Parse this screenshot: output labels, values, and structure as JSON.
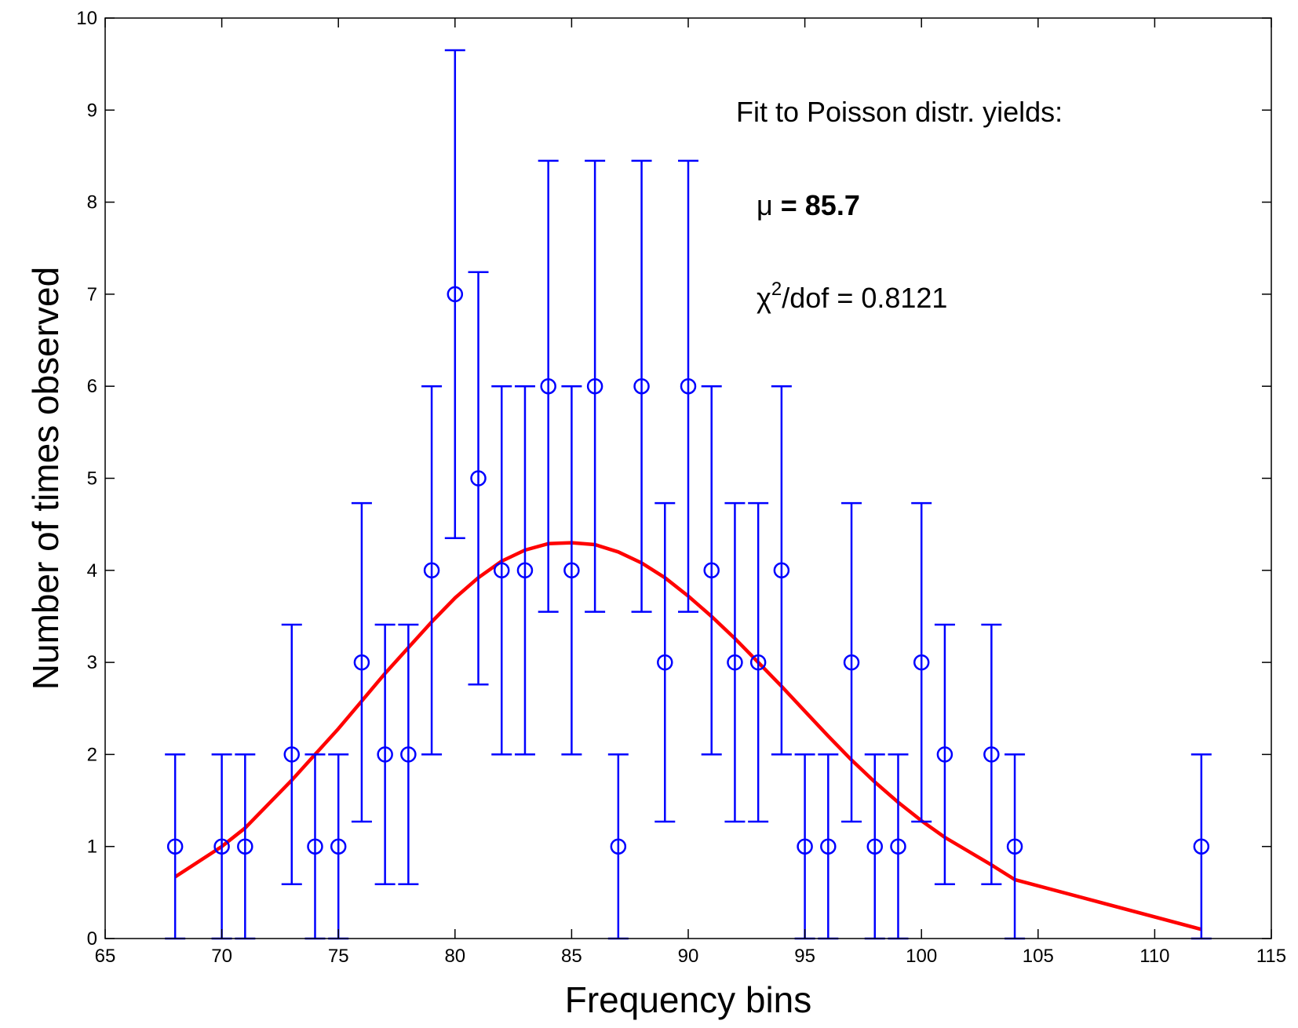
{
  "chart_data": {
    "type": "scatter",
    "title": "",
    "xlabel": "Frequency bins",
    "ylabel": "Number of times observed",
    "xlim": [
      65,
      115
    ],
    "ylim": [
      0,
      10
    ],
    "xticks": [
      "65",
      "70",
      "75",
      "80",
      "85",
      "90",
      "95",
      "100",
      "105",
      "110",
      "115"
    ],
    "yticks": [
      "0",
      "1",
      "2",
      "3",
      "4",
      "5",
      "6",
      "7",
      "8",
      "9",
      "10"
    ],
    "grid": false,
    "colors": {
      "data": "#0000ff",
      "fit": "#ff0000",
      "axes": "#000000"
    },
    "series": [
      {
        "kind": "errorbar",
        "marker": "circle",
        "x": [
          68,
          70,
          71,
          73,
          74,
          75,
          76,
          77,
          78,
          79,
          80,
          81,
          82,
          83,
          84,
          85,
          86,
          87,
          88,
          89,
          90,
          91,
          92,
          93,
          94,
          95,
          96,
          97,
          98,
          99,
          100,
          101,
          103,
          104,
          112
        ],
        "y": [
          1,
          1,
          1,
          2,
          1,
          1,
          3,
          2,
          2,
          4,
          7,
          5,
          4,
          4,
          6,
          4,
          6,
          1,
          6,
          3,
          6,
          4,
          3,
          3,
          4,
          1,
          1,
          3,
          1,
          1,
          3,
          2,
          2,
          1,
          1
        ],
        "err_low": [
          1,
          1,
          1,
          1.41,
          1,
          1,
          1.73,
          1.41,
          1.41,
          2,
          2.65,
          2.24,
          2,
          2,
          2.45,
          2,
          2.45,
          1,
          2.45,
          1.73,
          2.45,
          2,
          1.73,
          1.73,
          2,
          1,
          1,
          1.73,
          1,
          1,
          1.73,
          1.41,
          1.41,
          1,
          1
        ],
        "err_high": [
          1,
          1,
          1,
          1.41,
          1,
          1,
          1.73,
          1.41,
          1.41,
          2,
          2.65,
          2.24,
          2,
          2,
          2.45,
          2,
          2.45,
          1,
          2.45,
          1.73,
          2.45,
          2,
          1.73,
          1.73,
          2,
          1,
          1,
          1.73,
          1,
          1,
          1.73,
          1.41,
          1.41,
          1,
          1
        ]
      },
      {
        "kind": "line",
        "x": [
          68,
          70,
          71,
          73,
          74,
          75,
          76,
          77,
          78,
          79,
          80,
          81,
          82,
          83,
          84,
          85,
          86,
          87,
          88,
          89,
          90,
          91,
          92,
          93,
          94,
          95,
          96,
          97,
          98,
          99,
          100,
          101,
          103,
          104,
          112
        ],
        "y": [
          0.67,
          1.0,
          1.2,
          1.72,
          2.0,
          2.28,
          2.58,
          2.88,
          3.16,
          3.44,
          3.7,
          3.92,
          4.1,
          4.22,
          4.29,
          4.3,
          4.28,
          4.2,
          4.08,
          3.92,
          3.72,
          3.5,
          3.26,
          3.0,
          2.74,
          2.47,
          2.2,
          1.94,
          1.7,
          1.48,
          1.28,
          1.1,
          0.8,
          0.64,
          0.1
        ]
      }
    ],
    "annotations": {
      "line1": "Fit to Poisson distr. yields:",
      "mu_symbol": "μ",
      "mu_text": " = 85.7",
      "chi_symbol": "χ",
      "chi_sup": "2",
      "chi_text": "/dof = 0.8121"
    }
  }
}
